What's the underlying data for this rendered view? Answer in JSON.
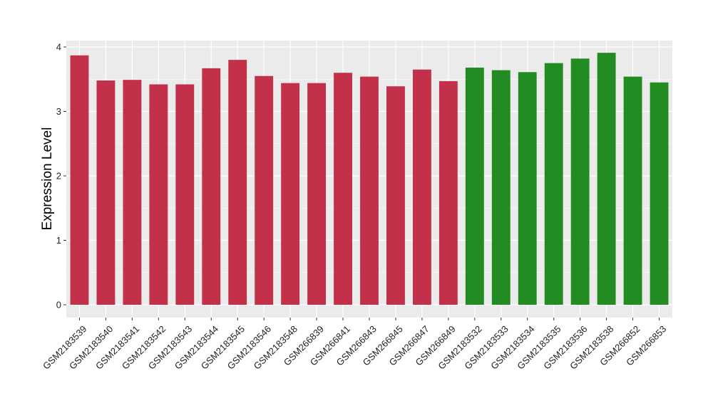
{
  "chart_data": {
    "type": "bar",
    "ylabel": "Expression Level",
    "xlabel": "",
    "ylim": [
      0,
      4.1
    ],
    "yticks": [
      0,
      1,
      2,
      3,
      4
    ],
    "grid": true,
    "categories": [
      "GSM2183539",
      "GSM2183540",
      "GSM2183541",
      "GSM2183542",
      "GSM2183543",
      "GSM2183544",
      "GSM2183545",
      "GSM2183546",
      "GSM2183548",
      "GSM266839",
      "GSM266841",
      "GSM266843",
      "GSM266845",
      "GSM266847",
      "GSM266849",
      "GSM2183532",
      "GSM2183533",
      "GSM2183534",
      "GSM2183535",
      "GSM2183536",
      "GSM2183538",
      "GSM266852",
      "GSM266853"
    ],
    "values": [
      3.87,
      3.48,
      3.49,
      3.42,
      3.42,
      3.67,
      3.8,
      3.55,
      3.44,
      3.44,
      3.6,
      3.54,
      3.39,
      3.65,
      3.47,
      3.68,
      3.64,
      3.61,
      3.75,
      3.82,
      3.91,
      3.54,
      3.45
    ],
    "groups": [
      "g1",
      "g1",
      "g1",
      "g1",
      "g1",
      "g1",
      "g1",
      "g1",
      "g1",
      "g1",
      "g1",
      "g1",
      "g1",
      "g1",
      "g1",
      "g2",
      "g2",
      "g2",
      "g2",
      "g2",
      "g2",
      "g2",
      "g2"
    ],
    "colors": {
      "g1": "#c3304a",
      "g2": "#228b22"
    },
    "panel_background": "#ebebeb",
    "gridline_color": "#ffffff"
  }
}
